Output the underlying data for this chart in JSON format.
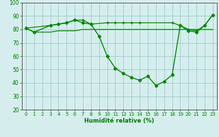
{
  "line1": {
    "x": [
      0,
      1,
      3,
      4,
      5,
      6,
      7,
      8,
      9,
      10,
      11,
      12,
      13,
      14,
      15,
      16,
      17,
      18,
      19,
      20,
      21,
      22,
      23
    ],
    "y": [
      81,
      78,
      83,
      84,
      85,
      87,
      85,
      84,
      75,
      60,
      51,
      47,
      44,
      42,
      45,
      38,
      41,
      46,
      83,
      79,
      78,
      83,
      91
    ],
    "color": "#008800",
    "marker": "D",
    "markersize": 2.2,
    "linewidth": 1.0
  },
  "line2": {
    "x": [
      0,
      3,
      5,
      6,
      7,
      8,
      10,
      11,
      12,
      13,
      14,
      18,
      19,
      20,
      21,
      22,
      23
    ],
    "y": [
      81,
      83,
      85,
      87,
      87,
      84,
      85,
      85,
      85,
      85,
      85,
      85,
      83,
      80,
      79,
      83,
      91
    ],
    "color": "#008800",
    "marker": "+",
    "markersize": 3.5,
    "linewidth": 0.9
  },
  "line3": {
    "x": [
      0,
      1,
      3,
      4,
      5,
      6,
      7,
      8,
      10,
      11,
      12,
      13,
      14,
      15,
      16,
      17,
      18,
      19,
      20,
      21,
      22,
      23
    ],
    "y": [
      81,
      78,
      78,
      79,
      79,
      79,
      80,
      80,
      80,
      80,
      80,
      80,
      80,
      80,
      80,
      80,
      80,
      80,
      80,
      80,
      80,
      80
    ],
    "color": "#008800",
    "marker": null,
    "markersize": 0,
    "linewidth": 0.9
  },
  "xlabel": "Humidité relative (%)",
  "xlabel_color": "#007700",
  "background_color": "#d5eeed",
  "grid_color": "#a0c8c8",
  "axis_color": "#555555",
  "tick_color": "#007700",
  "xlim": [
    -0.5,
    23.5
  ],
  "ylim": [
    20,
    100
  ],
  "yticks": [
    20,
    30,
    40,
    50,
    60,
    70,
    80,
    90,
    100
  ],
  "xticks": [
    0,
    1,
    2,
    3,
    4,
    5,
    6,
    7,
    8,
    9,
    10,
    11,
    12,
    13,
    14,
    15,
    16,
    17,
    18,
    19,
    20,
    21,
    22,
    23
  ],
  "tick_fontsize": 5.0,
  "xlabel_fontsize": 6.0
}
